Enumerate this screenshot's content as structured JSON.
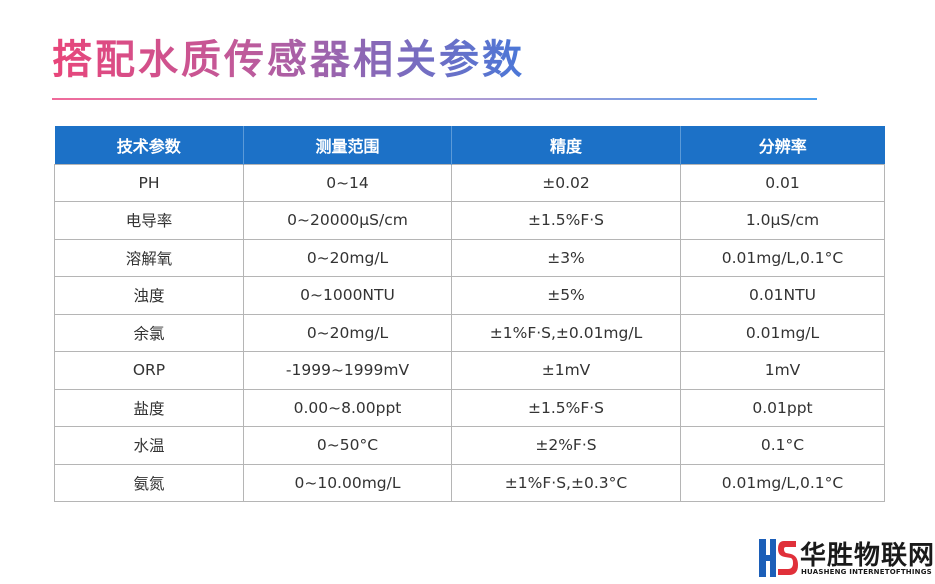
{
  "page": {
    "title": "搭配水质传感器相关参数"
  },
  "table": {
    "headers": [
      "技术参数",
      "测量范围",
      "精度",
      "分辨率"
    ],
    "rows": [
      [
        "PH",
        "0~14",
        "±0.02",
        "0.01"
      ],
      [
        "电导率",
        "0~20000μS/cm",
        "±1.5%F·S",
        "1.0μS/cm"
      ],
      [
        "溶解氧",
        "0~20mg/L",
        "±3%",
        "0.01mg/L,0.1°C"
      ],
      [
        "浊度",
        "0~1000NTU",
        "±5%",
        "0.01NTU"
      ],
      [
        "余氯",
        "0~20mg/L",
        "±1%F·S,±0.01mg/L",
        "0.01mg/L"
      ],
      [
        "ORP",
        "-1999~1999mV",
        "±1mV",
        "1mV"
      ],
      [
        "盐度",
        "0.00~8.00ppt",
        "±1.5%F·S",
        "0.01ppt"
      ],
      [
        "水温",
        "0~50°C",
        "±2%F·S",
        "0.1°C"
      ],
      [
        "氨氮",
        "0~10.00mg/L",
        "±1%F·S,±0.3°C",
        "0.01mg/L,0.1°C"
      ]
    ]
  },
  "logo": {
    "name_cn": "华胜物联网",
    "name_en": "HUASHENG INTERNETOFTHINGS",
    "icon": "hs-logo-icon",
    "colors": {
      "blue": "#1c5fb8",
      "red": "#e0303a"
    }
  },
  "colors": {
    "header_bg": "#1c71c7",
    "border": "#b5b5b5",
    "title_start": "#e8457a",
    "title_end": "#4a78d8"
  }
}
